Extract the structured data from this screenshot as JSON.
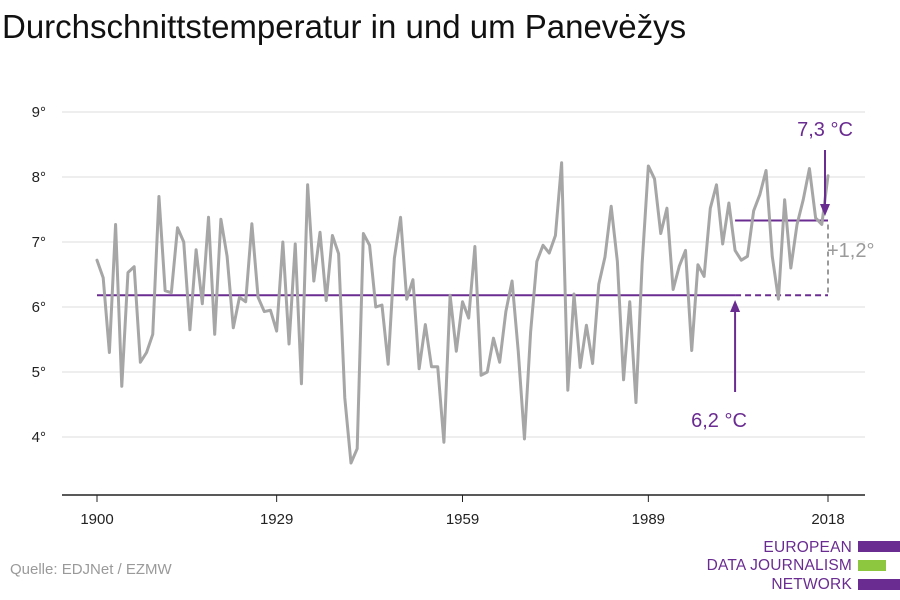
{
  "title": "Durchschnittstemperatur in und um Panevėžys",
  "source": "Quelle: EDJNet / EZMW",
  "logo": {
    "line1": "EUROPEAN",
    "line2": "DATA JOURNALISM",
    "line3": "NETWORK",
    "colors": [
      "#6a2c91",
      "#8dc63f",
      "#6a2c91"
    ]
  },
  "colors": {
    "series": "#a6a6a6",
    "accent": "#6a2c91",
    "grid": "#dddddd",
    "axis": "#222222"
  },
  "chart_data": {
    "type": "line",
    "title": "Durchschnittstemperatur in und um Panevėžys",
    "x_start": 1900,
    "x_end": 2018,
    "xticks": [
      1900,
      1929,
      1959,
      1989,
      2018
    ],
    "xtick_labels": [
      "1900",
      "1929",
      "1959",
      "1989",
      "2018"
    ],
    "ylim": [
      3,
      9
    ],
    "yticks": [
      4,
      5,
      6,
      7,
      8,
      9
    ],
    "ytick_labels": [
      "4°",
      "5°",
      "6°",
      "7°",
      "8°",
      "9°"
    ],
    "grid": true,
    "series": [
      {
        "values": [
          6.72,
          6.45,
          5.3,
          7.27,
          4.78,
          6.53,
          6.62,
          5.15,
          5.3,
          5.58,
          7.7,
          6.25,
          6.22,
          7.22,
          7.0,
          5.65,
          6.88,
          6.05,
          7.38,
          5.58,
          7.35,
          6.78,
          5.68,
          6.15,
          6.08,
          7.28,
          6.15,
          5.93,
          5.95,
          5.63,
          7.0,
          5.43,
          6.97,
          4.82,
          7.88,
          6.4,
          7.15,
          6.1,
          7.1,
          6.82,
          4.6,
          3.6,
          3.82,
          7.13,
          6.95,
          6.0,
          6.03,
          5.12,
          6.75,
          7.38,
          6.12,
          6.42,
          5.05,
          5.73,
          5.08,
          5.08,
          3.92,
          6.18,
          5.32,
          6.08,
          5.83,
          6.93,
          4.95,
          5.0,
          5.52,
          5.15,
          5.93,
          6.4,
          5.32,
          3.97,
          5.62,
          6.7,
          6.95,
          6.83,
          7.1,
          8.22,
          4.72,
          6.2,
          5.07,
          5.72,
          5.13,
          6.35,
          6.77,
          7.55,
          6.7,
          4.88,
          6.08,
          4.53,
          6.67,
          8.17,
          7.97,
          7.13,
          7.52,
          6.27,
          6.63,
          6.87,
          5.33,
          6.65,
          6.47,
          7.52,
          7.88,
          6.97,
          7.6,
          6.87,
          6.72,
          6.78,
          7.48,
          7.73,
          8.1,
          6.78,
          6.12,
          7.65,
          6.6,
          7.27,
          7.65,
          8.13,
          7.37,
          7.27,
          8.02
        ]
      }
    ],
    "reference_lines": [
      {
        "label": "6,2 °C",
        "value": 6.18,
        "from": 1900,
        "to": 2003,
        "dashed_to": 2018
      },
      {
        "label": "7,3 °C",
        "value": 7.33,
        "from": 2003,
        "to": 2018
      }
    ],
    "difference_label": "+1,2°"
  }
}
